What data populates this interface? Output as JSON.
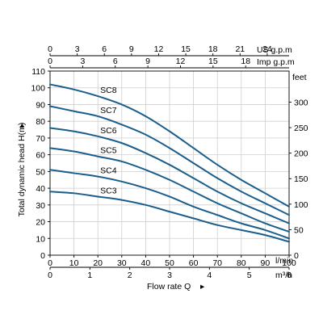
{
  "colors": {
    "curve": "#1b5e8c",
    "grid": "#cfcfcf",
    "axis": "#000000"
  },
  "chart_data": {
    "type": "line",
    "title": "",
    "xlabel": "Flow rate Q",
    "ylabel": "Total dynamic head H(m)",
    "grid": true,
    "legend": "none",
    "x_unit": "l/min",
    "y_unit": "m",
    "xlim": [
      0,
      100
    ],
    "ylim": [
      0,
      110
    ],
    "x_ticks": [
      0,
      10,
      20,
      30,
      40,
      50,
      60,
      70,
      80,
      90,
      100
    ],
    "y_ticks": [
      0,
      10,
      20,
      30,
      40,
      50,
      60,
      70,
      80,
      90,
      100,
      110
    ],
    "secondary_axes": {
      "top_us": {
        "label": "US g.p.m",
        "ticks": [
          "0",
          "3",
          "6",
          "9",
          "12",
          "15",
          "18",
          "21",
          "24"
        ]
      },
      "top_imp": {
        "label": "Imp g.p.m",
        "ticks": [
          "0",
          "3",
          "6",
          "9",
          "12",
          "15",
          "18"
        ]
      },
      "bottom_m3h": {
        "label": "m³/h",
        "ticks": [
          "0",
          "1",
          "2",
          "3",
          "4",
          "5",
          "6"
        ]
      },
      "right_feet": {
        "label": "feet",
        "ticks": [
          "0",
          "50",
          "100",
          "150",
          "200",
          "250",
          "300"
        ]
      }
    },
    "x": [
      0,
      10,
      20,
      30,
      40,
      50,
      60,
      70,
      80,
      90,
      100
    ],
    "series": [
      {
        "name": "SC8",
        "values": [
          102,
          99,
          95,
          90,
          83,
          74,
          64,
          54,
          45,
          37,
          29
        ]
      },
      {
        "name": "SC7",
        "values": [
          89,
          86,
          83,
          78,
          72,
          64,
          55,
          46,
          38,
          31,
          24
        ]
      },
      {
        "name": "SC6",
        "values": [
          76,
          74,
          71,
          67,
          61,
          54,
          46,
          38,
          31,
          25,
          19
        ]
      },
      {
        "name": "SC5",
        "values": [
          64,
          62,
          59,
          56,
          51,
          45,
          38,
          31,
          25,
          19,
          14
        ]
      },
      {
        "name": "SC4",
        "values": [
          51,
          49,
          47,
          44,
          40,
          35,
          29,
          24,
          19,
          15,
          10
        ]
      },
      {
        "name": "SC3",
        "values": [
          38,
          37,
          35,
          33,
          30,
          26,
          22,
          18,
          15,
          12,
          8
        ]
      }
    ]
  }
}
